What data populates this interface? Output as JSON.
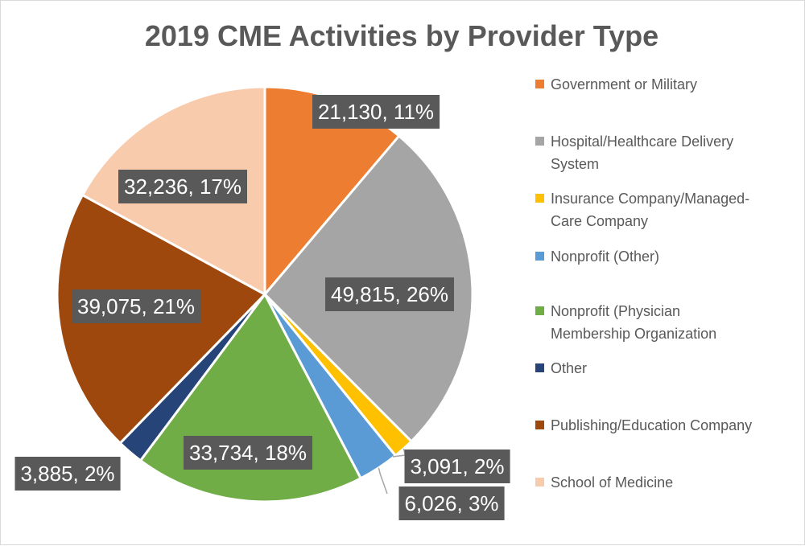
{
  "chart_data": {
    "type": "pie",
    "title": "2019 CME Activities by Provider Type",
    "legend_position": "right",
    "slices": [
      {
        "name": "Government or Military",
        "value": 21130,
        "percent": "11%",
        "label": "21,130, 11%",
        "color": "#ED7D31"
      },
      {
        "name": "Hospital/Healthcare Delivery System",
        "value": 49815,
        "percent": "26%",
        "label": "49,815, 26%",
        "color": "#A5A5A5"
      },
      {
        "name": "Insurance Company/Managed-Care Company",
        "value": 3091,
        "percent": "2%",
        "label": "3,091, 2%",
        "color": "#FFC000"
      },
      {
        "name": "Nonprofit (Other)",
        "value": 6026,
        "percent": "3%",
        "label": "6,026, 3%",
        "color": "#5B9BD5"
      },
      {
        "name": "Nonprofit (Physician Membership Organization",
        "value": 33734,
        "percent": "18%",
        "label": "33,734, 18%",
        "color": "#70AD47"
      },
      {
        "name": "Other",
        "value": 3885,
        "percent": "2%",
        "label": "3,885, 2%",
        "color": "#264478"
      },
      {
        "name": "Publishing/Education Company",
        "value": 39075,
        "percent": "21%",
        "label": "39,075, 21%",
        "color": "#9E480E"
      },
      {
        "name": "School of Medicine",
        "value": 32236,
        "percent": "17%",
        "label": "32,236, 17%",
        "color": "#F8CBAD"
      }
    ],
    "legend_lines": [
      [
        "Government or Military"
      ],
      [
        "Hospital/Healthcare Delivery",
        "System"
      ],
      [
        "Insurance Company/Managed-",
        "Care Company"
      ],
      [
        "Nonprofit (Other)"
      ],
      [
        "Nonprofit (Physician",
        "Membership Organization"
      ],
      [
        "Other"
      ],
      [
        "Publishing/Education Company"
      ],
      [
        "School of Medicine"
      ]
    ]
  }
}
